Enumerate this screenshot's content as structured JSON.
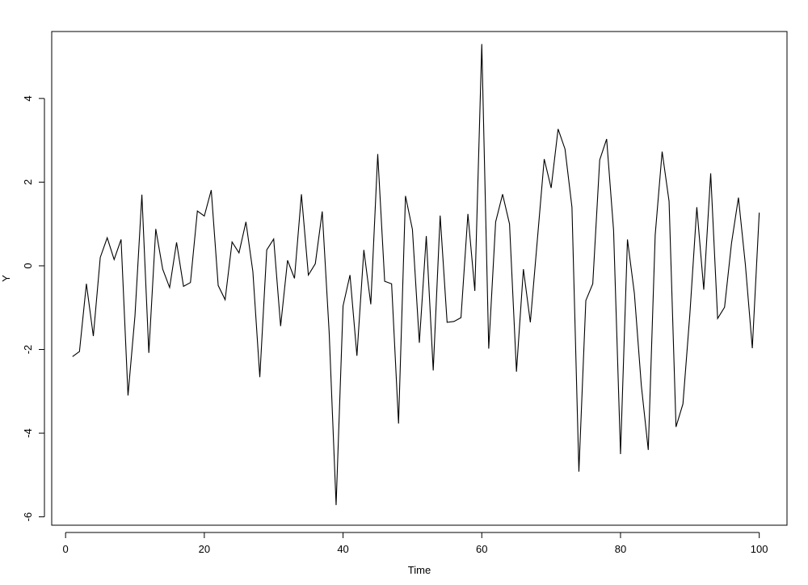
{
  "chart_data": {
    "type": "line",
    "title": "",
    "xlabel": "Time",
    "ylabel": "Y",
    "xlim": [
      -2,
      104
    ],
    "ylim": [
      -6.2,
      5.6
    ],
    "x_ticks": [
      0,
      20,
      40,
      60,
      80,
      100
    ],
    "y_ticks": [
      -6,
      -4,
      -2,
      0,
      2,
      4
    ],
    "y_tick_labels_rotated": true,
    "grid": false,
    "legend": "none",
    "line_color": "#000000",
    "series": [
      {
        "x": [
          1,
          2,
          3,
          4,
          5,
          6,
          7,
          8,
          9,
          10,
          11,
          12,
          13,
          14,
          15,
          16,
          17,
          18,
          19,
          20,
          21,
          22,
          23,
          24,
          25,
          26,
          27,
          28,
          29,
          30,
          31,
          32,
          33,
          34,
          35,
          36,
          37,
          38,
          39,
          40,
          41,
          42,
          43,
          44,
          45,
          46,
          47,
          48,
          49,
          50,
          51,
          52,
          53,
          54,
          55,
          56,
          57,
          58,
          59,
          60,
          61,
          62,
          63,
          64,
          65,
          66,
          67,
          68,
          69,
          70,
          71,
          72,
          73,
          74,
          75,
          76,
          77,
          78,
          79,
          80,
          81,
          82,
          83,
          84,
          85,
          86,
          87,
          88,
          89,
          90,
          91,
          92,
          93,
          94,
          95,
          96,
          97,
          98,
          99,
          100
        ],
        "values": [
          -2.17,
          -2.05,
          -0.43,
          -1.68,
          0.2,
          0.67,
          0.15,
          0.63,
          -3.1,
          -1.2,
          1.7,
          -2.08,
          0.88,
          -0.08,
          -0.52,
          0.56,
          -0.49,
          -0.4,
          1.31,
          1.19,
          1.81,
          -0.47,
          -0.81,
          0.57,
          0.31,
          1.05,
          -0.14,
          -2.66,
          0.38,
          0.64,
          -1.44,
          0.13,
          -0.3,
          1.71,
          -0.22,
          0.05,
          1.3,
          -1.6,
          -5.72,
          -0.96,
          -0.22,
          -2.15,
          0.38,
          -0.92,
          2.67,
          -0.37,
          -0.43,
          -3.77,
          1.67,
          0.87,
          -1.84,
          0.71,
          -2.5,
          1.2,
          -1.35,
          -1.33,
          -1.24,
          1.24,
          -0.6,
          5.3,
          -1.98,
          1.05,
          1.71,
          1.0,
          -2.53,
          -0.08,
          -1.35,
          0.6,
          2.55,
          1.86,
          3.27,
          2.79,
          1.4,
          -4.92,
          -0.83,
          -0.43,
          2.53,
          3.03,
          0.85,
          -4.5,
          0.63,
          -0.66,
          -2.86,
          -4.4,
          0.74,
          2.73,
          1.54,
          -3.85,
          -3.3,
          -1.15,
          1.4,
          -0.57,
          2.21,
          -1.26,
          -0.99,
          0.54,
          1.63,
          0.03,
          -1.97,
          1.27
        ]
      }
    ]
  }
}
